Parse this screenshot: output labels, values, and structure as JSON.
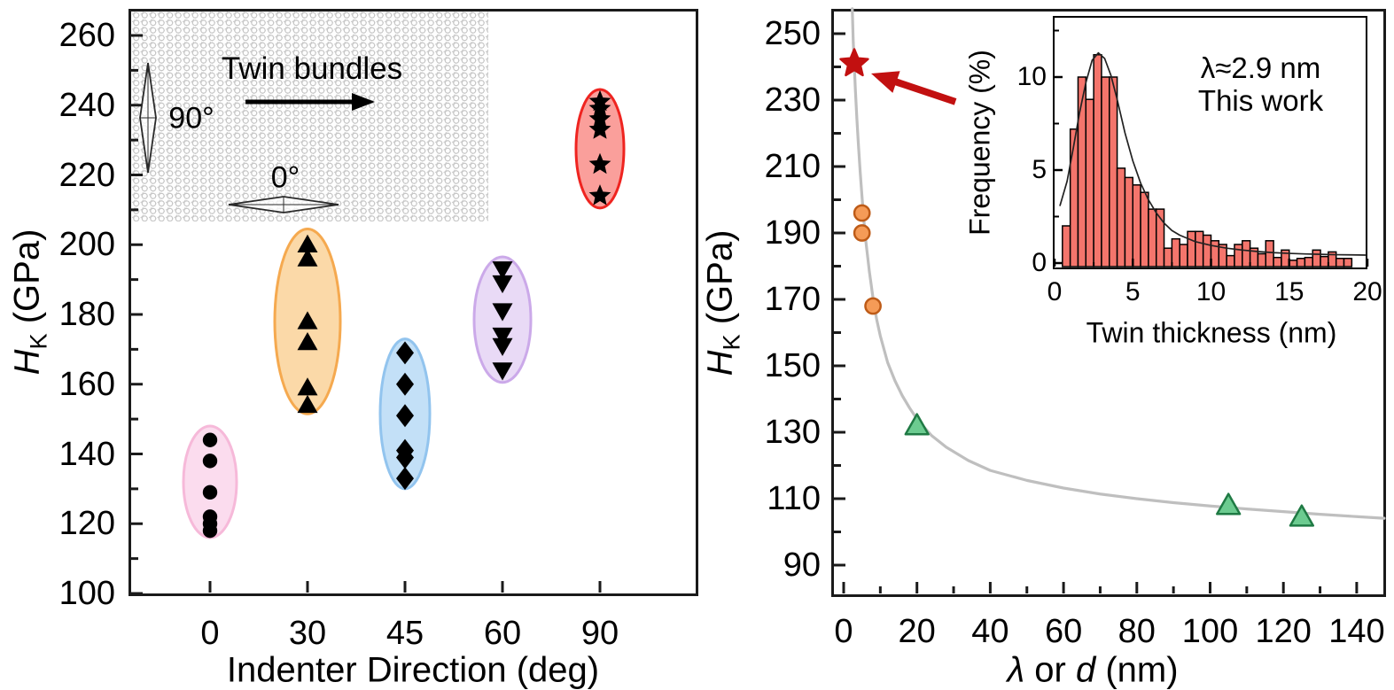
{
  "chart_data": [
    {
      "id": "hardness-vs-indenter-direction",
      "type": "scatter",
      "xlabel": "Indenter Direction (deg)",
      "ylabel_var": "H",
      "ylabel_sub": "K",
      "ylabel_unit": " (GPa)",
      "x_categories": [
        "0",
        "30",
        "45",
        "60",
        "90"
      ],
      "yticks": [
        100,
        120,
        140,
        160,
        180,
        200,
        220,
        240,
        260
      ],
      "ylim": [
        100,
        268
      ],
      "grid": false,
      "marker_color": "#000000",
      "groups": [
        {
          "direction_deg": 0,
          "marker": "circle",
          "hk_values": [
            144,
            138,
            129,
            122,
            120,
            118
          ],
          "ellipse": {
            "center": 132,
            "half_height": 16,
            "fill": "#FBDCEE",
            "stroke": "#F6B9D9"
          }
        },
        {
          "direction_deg": 30,
          "marker": "triangle-up",
          "hk_values": [
            200,
            196,
            178,
            172,
            159,
            154
          ],
          "ellipse": {
            "center": 178,
            "half_height": 26.5,
            "fill": "#FBD9A8",
            "stroke": "#F5A94F"
          }
        },
        {
          "direction_deg": 45,
          "marker": "diamond",
          "hk_values": [
            169,
            160,
            151,
            141,
            139,
            133
          ],
          "ellipse": {
            "center": 151.5,
            "half_height": 21.5,
            "fill": "#C3E0F7",
            "stroke": "#92C4EE"
          }
        },
        {
          "direction_deg": 60,
          "marker": "triangle-down",
          "hk_values": [
            193,
            189,
            181,
            174,
            171,
            164
          ],
          "ellipse": {
            "center": 178.5,
            "half_height": 18,
            "fill": "#E9DAF6",
            "stroke": "#CBA9E9"
          }
        },
        {
          "direction_deg": 90,
          "marker": "star",
          "hk_values": [
            241,
            239,
            236,
            233,
            223,
            214
          ],
          "ellipse": {
            "center": 227.5,
            "half_height": 17,
            "fill": "#FA9F9B",
            "stroke": "#EF2420"
          }
        }
      ],
      "inset_schematic": {
        "title": "Twin bundles",
        "label_vertical": "90°",
        "label_horizontal": "0°"
      }
    },
    {
      "id": "hardness-vs-twin-thickness-or-grain-size",
      "type": "scatter-line",
      "xlabel_lambda": "λ",
      "xlabel_mid": " or ",
      "xlabel_d": "d",
      "xlabel_unit": " (nm)",
      "ylabel_var": "H",
      "ylabel_sub": "K",
      "ylabel_unit": " (GPa)",
      "xticks": [
        0,
        20,
        40,
        60,
        80,
        100,
        120,
        140
      ],
      "yticks": [
        90,
        110,
        130,
        150,
        170,
        190,
        210,
        230,
        250
      ],
      "xlim": [
        -3.4,
        147.8
      ],
      "ylim": [
        81,
        257.5
      ],
      "grid": false,
      "series": [
        {
          "name": "this-work-star",
          "marker": "star",
          "fill": "#C21010",
          "stroke": "#C21010",
          "points": [
            [
              2.9,
              241
            ]
          ]
        },
        {
          "name": "nanotwinned-circles",
          "marker": "circle",
          "fill": "#F59B57",
          "stroke": "#BE5B17",
          "points": [
            [
              5,
              196
            ],
            [
              5,
              190
            ],
            [
              8,
              168
            ]
          ]
        },
        {
          "name": "coarse-triangles",
          "marker": "triangle-up",
          "fill": "#6CCB90",
          "stroke": "#1F7A44",
          "points": [
            [
              20,
              132
            ],
            [
              105,
              108
            ],
            [
              125,
              104.5
            ]
          ]
        }
      ],
      "fit_curve": {
        "color": "#BFBFBF",
        "points": [
          [
            2.35,
            257.5
          ],
          [
            2.6,
            248
          ],
          [
            2.9,
            240.5
          ],
          [
            3.2,
            233
          ],
          [
            3.6,
            224.5
          ],
          [
            4,
            217
          ],
          [
            4.5,
            208.5
          ],
          [
            5,
            201
          ],
          [
            5.5,
            194
          ],
          [
            6,
            188
          ],
          [
            7,
            178.5
          ],
          [
            8,
            170.5
          ],
          [
            9,
            164
          ],
          [
            10,
            159
          ],
          [
            12,
            151
          ],
          [
            14,
            145.5
          ],
          [
            16,
            141
          ],
          [
            18,
            137.3
          ],
          [
            20,
            134
          ],
          [
            24,
            129
          ],
          [
            28,
            125.5
          ],
          [
            34,
            121.5
          ],
          [
            40,
            118.5
          ],
          [
            50,
            115.5
          ],
          [
            60,
            113.2
          ],
          [
            70,
            111.4
          ],
          [
            80,
            110
          ],
          [
            90,
            108.8
          ],
          [
            100,
            107.8
          ],
          [
            110,
            106.9
          ],
          [
            120,
            106.1
          ],
          [
            130,
            105.3
          ],
          [
            140,
            104.6
          ],
          [
            147.5,
            104.1
          ]
        ]
      },
      "annotation_arrow": {
        "color": "#C21010",
        "from": [
          30.5,
          229.5
        ],
        "to": [
          7.5,
          238
        ]
      }
    },
    {
      "id": "twin-thickness-histogram-inset",
      "type": "bar",
      "xlabel": "Twin thickness (nm)",
      "ylabel": "Frequency (%)",
      "annotation_line1": "λ≈2.9 nm",
      "annotation_line2": "This work",
      "xticks": [
        0,
        5,
        10,
        15,
        20
      ],
      "yticks": [
        0,
        5,
        10
      ],
      "xlim": [
        0,
        20
      ],
      "ylim": [
        0,
        13.3
      ],
      "bin_start": 0.5,
      "bin_width": 0.5,
      "bar_fill": "#F4756C",
      "bar_stroke": "#000000",
      "frequencies": [
        2.0,
        7.2,
        10.0,
        8.8,
        11.2,
        10.0,
        10.0,
        5.1,
        4.6,
        4.2,
        3.8,
        2.9,
        2.9,
        0.8,
        1.3,
        1.0,
        1.7,
        1.7,
        1.5,
        1.2,
        1.0,
        0.4,
        1.0,
        1.2,
        0.8,
        0.5,
        1.2,
        0.3,
        0.7,
        0.15,
        0.25,
        0.3,
        0.7,
        0.35,
        0.6,
        0.25,
        0.25
      ],
      "fit_curve": {
        "color": "#222222",
        "points": [
          [
            0.35,
            3.1
          ],
          [
            0.8,
            4.4
          ],
          [
            1.2,
            6.2
          ],
          [
            1.6,
            8.1
          ],
          [
            2.0,
            9.7
          ],
          [
            2.4,
            10.9
          ],
          [
            2.8,
            11.3
          ],
          [
            3.2,
            11.0
          ],
          [
            3.6,
            10.1
          ],
          [
            4.0,
            8.8
          ],
          [
            4.5,
            7.0
          ],
          [
            5.0,
            5.5
          ],
          [
            5.5,
            4.3
          ],
          [
            6.0,
            3.4
          ],
          [
            6.5,
            2.7
          ],
          [
            7.0,
            2.15
          ],
          [
            7.5,
            1.75
          ],
          [
            8.0,
            1.5
          ],
          [
            9.0,
            1.15
          ],
          [
            10,
            0.95
          ],
          [
            11,
            0.8
          ],
          [
            12,
            0.7
          ],
          [
            13,
            0.62
          ],
          [
            14,
            0.56
          ],
          [
            15,
            0.52
          ],
          [
            16,
            0.49
          ],
          [
            17,
            0.47
          ],
          [
            18,
            0.45
          ],
          [
            19,
            0.44
          ],
          [
            19.9,
            0.43
          ]
        ]
      }
    }
  ]
}
